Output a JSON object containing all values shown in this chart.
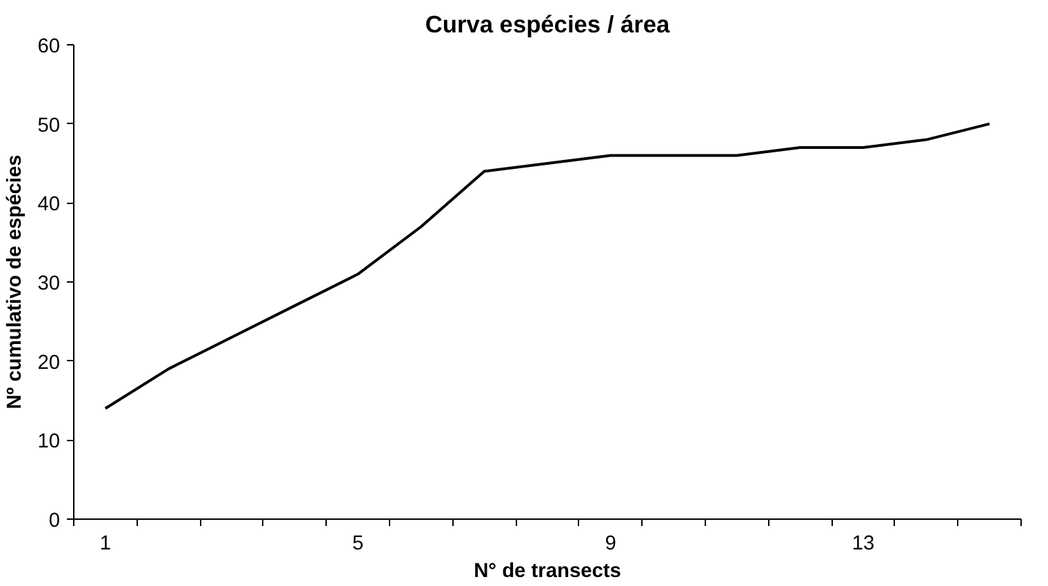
{
  "chart_data": {
    "type": "line",
    "title": "Curva espécies / área",
    "xlabel": "N° de transects",
    "ylabel": "Nº cumulativo de espécies",
    "categories": [
      "1",
      null,
      null,
      null,
      "5",
      null,
      null,
      null,
      "9",
      null,
      null,
      null,
      "13",
      null,
      null
    ],
    "series": [
      {
        "color": "#000000",
        "values": [
          14,
          19,
          23,
          27,
          31,
          37,
          44,
          45,
          46,
          46,
          46,
          47,
          47,
          48,
          50
        ]
      }
    ],
    "ylim": [
      0,
      60
    ],
    "yticks": [
      0,
      10,
      20,
      30,
      40,
      50,
      60
    ],
    "grid": false,
    "marker": "none",
    "line_style": "solid"
  }
}
